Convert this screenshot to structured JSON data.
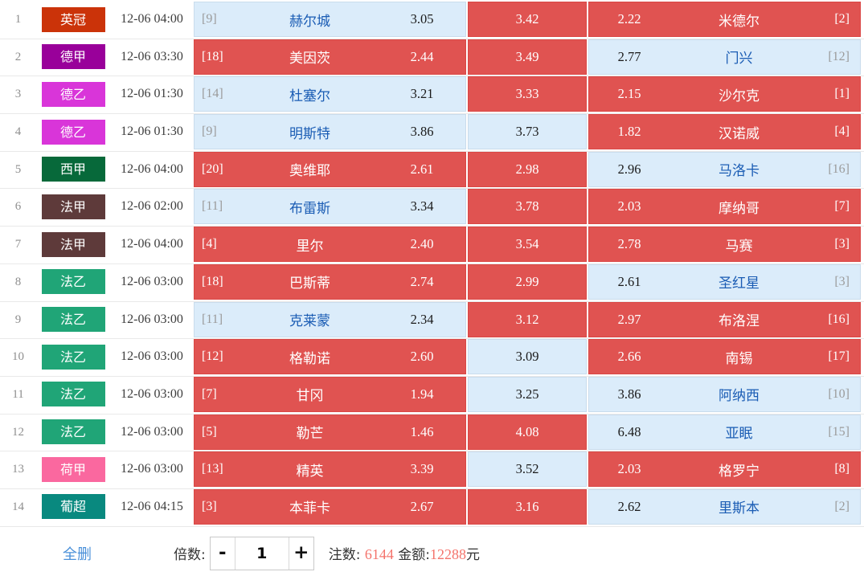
{
  "colors": {
    "selected_cell": "#e05351",
    "unselected_cell": "#dbecfa",
    "team_text": "#1a5cb4",
    "highlight_number": "#f4736b",
    "link_blue": "#4a90d9"
  },
  "table": {
    "rows": [
      {
        "num": "1",
        "league": "英冠",
        "league_color": "#cb3309",
        "time": "12-06 04:00",
        "home": {
          "rank": "[9]",
          "team": "赫尔城",
          "odds": "3.05",
          "selected": false
        },
        "draw": {
          "odds": "3.42",
          "selected": true
        },
        "away": {
          "odds": "2.22",
          "team": "米德尔",
          "rank": "[2]",
          "selected": true
        }
      },
      {
        "num": "2",
        "league": "德甲",
        "league_color": "#99009a",
        "time": "12-06 03:30",
        "home": {
          "rank": "[18]",
          "team": "美因茨",
          "odds": "2.44",
          "selected": true
        },
        "draw": {
          "odds": "3.49",
          "selected": true
        },
        "away": {
          "odds": "2.77",
          "team": "门兴",
          "rank": "[12]",
          "selected": false
        }
      },
      {
        "num": "3",
        "league": "德乙",
        "league_color": "#d935d9",
        "time": "12-06 01:30",
        "home": {
          "rank": "[14]",
          "team": "杜塞尔",
          "odds": "3.21",
          "selected": false
        },
        "draw": {
          "odds": "3.33",
          "selected": true
        },
        "away": {
          "odds": "2.15",
          "team": "沙尔克",
          "rank": "[1]",
          "selected": true
        }
      },
      {
        "num": "4",
        "league": "德乙",
        "league_color": "#d935d9",
        "time": "12-06 01:30",
        "home": {
          "rank": "[9]",
          "team": "明斯特",
          "odds": "3.86",
          "selected": false
        },
        "draw": {
          "odds": "3.73",
          "selected": false
        },
        "away": {
          "odds": "1.82",
          "team": "汉诺威",
          "rank": "[4]",
          "selected": true
        }
      },
      {
        "num": "5",
        "league": "西甲",
        "league_color": "#07693a",
        "time": "12-06 04:00",
        "home": {
          "rank": "[20]",
          "team": "奥维耶",
          "odds": "2.61",
          "selected": true
        },
        "draw": {
          "odds": "2.98",
          "selected": true
        },
        "away": {
          "odds": "2.96",
          "team": "马洛卡",
          "rank": "[16]",
          "selected": false
        }
      },
      {
        "num": "6",
        "league": "法甲",
        "league_color": "#5e3a3a",
        "time": "12-06 02:00",
        "home": {
          "rank": "[11]",
          "team": "布雷斯",
          "odds": "3.34",
          "selected": false
        },
        "draw": {
          "odds": "3.78",
          "selected": true
        },
        "away": {
          "odds": "2.03",
          "team": "摩纳哥",
          "rank": "[7]",
          "selected": true
        }
      },
      {
        "num": "7",
        "league": "法甲",
        "league_color": "#5e3a3a",
        "time": "12-06 04:00",
        "home": {
          "rank": "[4]",
          "team": "里尔",
          "odds": "2.40",
          "selected": true
        },
        "draw": {
          "odds": "3.54",
          "selected": true
        },
        "away": {
          "odds": "2.78",
          "team": "马赛",
          "rank": "[3]",
          "selected": true
        }
      },
      {
        "num": "8",
        "league": "法乙",
        "league_color": "#20a577",
        "time": "12-06 03:00",
        "home": {
          "rank": "[18]",
          "team": "巴斯蒂",
          "odds": "2.74",
          "selected": true
        },
        "draw": {
          "odds": "2.99",
          "selected": true
        },
        "away": {
          "odds": "2.61",
          "team": "圣红星",
          "rank": "[3]",
          "selected": false
        }
      },
      {
        "num": "9",
        "league": "法乙",
        "league_color": "#20a577",
        "time": "12-06 03:00",
        "home": {
          "rank": "[11]",
          "team": "克莱蒙",
          "odds": "2.34",
          "selected": false
        },
        "draw": {
          "odds": "3.12",
          "selected": true
        },
        "away": {
          "odds": "2.97",
          "team": "布洛涅",
          "rank": "[16]",
          "selected": true
        }
      },
      {
        "num": "10",
        "league": "法乙",
        "league_color": "#20a577",
        "time": "12-06 03:00",
        "home": {
          "rank": "[12]",
          "team": "格勒诺",
          "odds": "2.60",
          "selected": true
        },
        "draw": {
          "odds": "3.09",
          "selected": false
        },
        "away": {
          "odds": "2.66",
          "team": "南锡",
          "rank": "[17]",
          "selected": true
        }
      },
      {
        "num": "11",
        "league": "法乙",
        "league_color": "#20a577",
        "time": "12-06 03:00",
        "home": {
          "rank": "[7]",
          "team": "甘冈",
          "odds": "1.94",
          "selected": true
        },
        "draw": {
          "odds": "3.25",
          "selected": false
        },
        "away": {
          "odds": "3.86",
          "team": "阿纳西",
          "rank": "[10]",
          "selected": false
        }
      },
      {
        "num": "12",
        "league": "法乙",
        "league_color": "#20a577",
        "time": "12-06 03:00",
        "home": {
          "rank": "[5]",
          "team": "勒芒",
          "odds": "1.46",
          "selected": true
        },
        "draw": {
          "odds": "4.08",
          "selected": true
        },
        "away": {
          "odds": "6.48",
          "team": "亚眠",
          "rank": "[15]",
          "selected": false
        }
      },
      {
        "num": "13",
        "league": "荷甲",
        "league_color": "#fa689f",
        "time": "12-06 03:00",
        "home": {
          "rank": "[13]",
          "team": "精英",
          "odds": "3.39",
          "selected": true
        },
        "draw": {
          "odds": "3.52",
          "selected": false
        },
        "away": {
          "odds": "2.03",
          "team": "格罗宁",
          "rank": "[8]",
          "selected": true
        }
      },
      {
        "num": "14",
        "league": "葡超",
        "league_color": "#09897f",
        "time": "12-06 04:15",
        "home": {
          "rank": "[3]",
          "team": "本菲卡",
          "odds": "2.67",
          "selected": true
        },
        "draw": {
          "odds": "3.16",
          "selected": true
        },
        "away": {
          "odds": "2.62",
          "team": "里斯本",
          "rank": "[2]",
          "selected": false
        }
      }
    ]
  },
  "footer": {
    "delete_all_label": "全删",
    "multiplier_label": "倍数:",
    "minus_label": "-",
    "multiplier_value": "1",
    "plus_label": "+",
    "bets_label": "注数: ",
    "bets_value": "6144",
    "amount_label": " 金额:",
    "amount_value": "12288",
    "amount_unit": "元"
  }
}
